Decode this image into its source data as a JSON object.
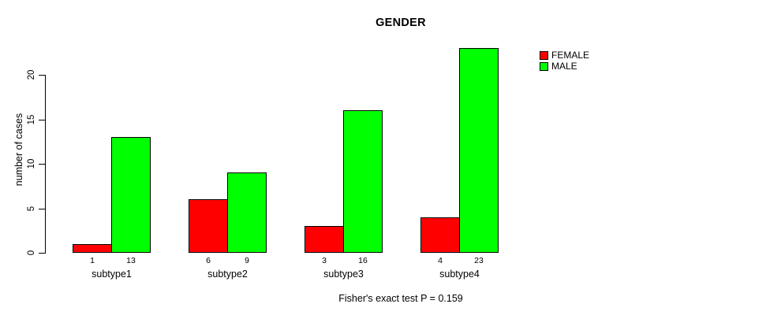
{
  "chart_data": {
    "type": "bar",
    "title": "GENDER",
    "xlabel": "",
    "ylabel": "number of cases",
    "categories": [
      "subtype1",
      "subtype2",
      "subtype3",
      "subtype4"
    ],
    "series": [
      {
        "name": "FEMALE",
        "color": "#ff0000",
        "values": [
          1,
          6,
          3,
          4
        ]
      },
      {
        "name": "MALE",
        "color": "#00ff00",
        "values": [
          13,
          9,
          16,
          23
        ]
      }
    ],
    "ylim": [
      0,
      20
    ],
    "yticks": [
      0,
      5,
      10,
      15,
      20
    ],
    "bar_value_labels_shown": true,
    "grid": false,
    "legend_position": "top-right",
    "annotation": "Fisher's exact test P = 0.159"
  }
}
